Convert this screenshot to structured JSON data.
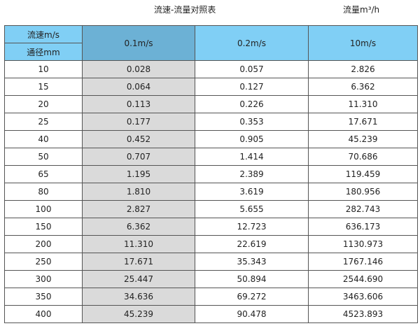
{
  "title": "流速-流量对照表",
  "unit": "流量m³/h",
  "header": {
    "speed_label": "流速m/s",
    "diameter_label": "通径mm",
    "columns": [
      "0.1m/s",
      "0.2m/s",
      "10m/s"
    ]
  },
  "colors": {
    "header": "#80cff5",
    "header_selected": "#6cb1d5",
    "selected_column": "#dadada"
  },
  "rows": [
    [
      "10",
      "0.028",
      "0.057",
      "2.826"
    ],
    [
      "15",
      "0.064",
      "0.127",
      "6.362"
    ],
    [
      "20",
      "0.113",
      "0.226",
      "11.310"
    ],
    [
      "25",
      "0.177",
      "0.353",
      "17.671"
    ],
    [
      "40",
      "0.452",
      "0.905",
      "45.239"
    ],
    [
      "50",
      "0.707",
      "1.414",
      "70.686"
    ],
    [
      "65",
      "1.195",
      "2.389",
      "119.459"
    ],
    [
      "80",
      "1.810",
      "3.619",
      "180.956"
    ],
    [
      "100",
      "2.827",
      "5.655",
      "282.743"
    ],
    [
      "150",
      "6.362",
      "12.723",
      "636.173"
    ],
    [
      "200",
      "11.310",
      "22.619",
      "1130.973"
    ],
    [
      "250",
      "17.671",
      "35.343",
      "1767.146"
    ],
    [
      "300",
      "25.447",
      "50.894",
      "2544.690"
    ],
    [
      "350",
      "34.636",
      "69.272",
      "3463.606"
    ],
    [
      "400",
      "45.239",
      "90.478",
      "4523.893"
    ]
  ]
}
